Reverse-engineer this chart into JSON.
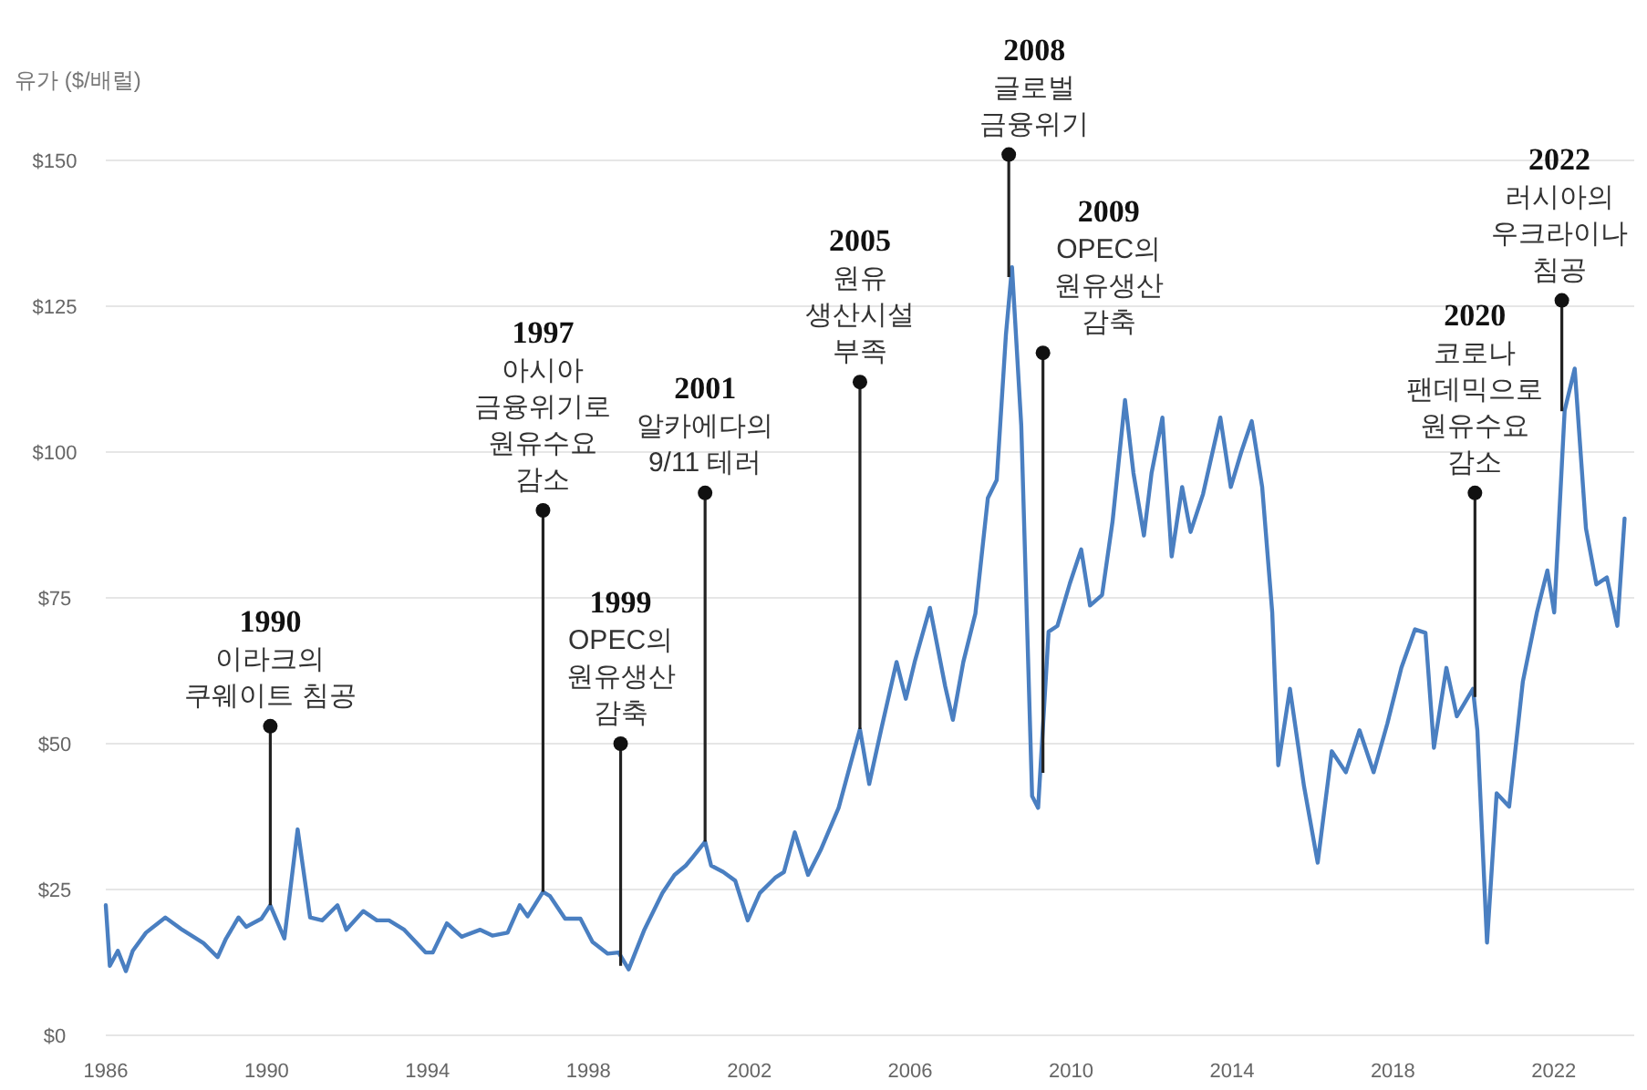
{
  "chart_data": {
    "type": "line",
    "ylabel": "유가 ($/배럴)",
    "xlim": [
      1986,
      2024
    ],
    "xticks": [
      1986,
      1990,
      1994,
      1998,
      2002,
      2006,
      2010,
      2014,
      2018,
      2022
    ],
    "ylim": [
      0,
      150
    ],
    "yticks": [
      {
        "value": 0,
        "label": "$0"
      },
      {
        "value": 25,
        "label": "$25"
      },
      {
        "value": 50,
        "label": "$50"
      },
      {
        "value": 75,
        "label": "$75"
      },
      {
        "value": 100,
        "label": "$100"
      },
      {
        "value": 125,
        "label": "$125"
      },
      {
        "value": 150,
        "label": "$150"
      }
    ],
    "grid": "y",
    "series": [
      {
        "color": "#4a7fc1",
        "x": [
          1986.0,
          1986.1,
          1986.3,
          1986.5,
          1986.67,
          1987.0,
          1987.48,
          1987.9,
          1988.18,
          1988.43,
          1988.78,
          1988.99,
          1989.3,
          1989.49,
          1989.87,
          1990.09,
          1990.44,
          1990.77,
          1991.08,
          1991.38,
          1991.76,
          1991.98,
          1992.4,
          1992.74,
          1993.04,
          1993.42,
          1993.95,
          1994.13,
          1994.48,
          1994.85,
          1995.31,
          1995.61,
          1995.99,
          1996.29,
          1996.49,
          1996.87,
          1997.04,
          1997.42,
          1997.8,
          1998.1,
          1998.48,
          1998.75,
          1999.0,
          1999.39,
          1999.84,
          2000.14,
          2000.42,
          2000.6,
          2000.9,
          2001.05,
          2001.35,
          2001.65,
          2001.96,
          2002.26,
          2002.64,
          2002.86,
          2003.13,
          2003.46,
          2003.77,
          2004.22,
          2004.75,
          2004.98,
          2005.28,
          2005.66,
          2005.89,
          2006.11,
          2006.49,
          2006.87,
          2007.06,
          2007.32,
          2007.62,
          2007.93,
          2008.15,
          2008.38,
          2008.53,
          2008.76,
          2009.03,
          2009.18,
          2009.44,
          2009.66,
          2009.97,
          2010.25,
          2010.47,
          2010.77,
          2011.03,
          2011.34,
          2011.55,
          2011.81,
          2012.0,
          2012.27,
          2012.5,
          2012.76,
          2012.97,
          2013.28,
          2013.71,
          2013.97,
          2014.23,
          2014.49,
          2014.75,
          2015.0,
          2015.15,
          2015.44,
          2015.79,
          2016.13,
          2016.48,
          2016.83,
          2017.17,
          2017.52,
          2017.86,
          2018.21,
          2018.55,
          2018.81,
          2019.02,
          2019.33,
          2019.59,
          2019.99,
          2020.1,
          2020.34,
          2020.58,
          2020.89,
          2021.23,
          2021.58,
          2021.84,
          2022.01,
          2022.27,
          2022.52,
          2022.8,
          2023.06,
          2023.32,
          2023.58,
          2023.76
        ],
        "values": [
          22.3,
          11.9,
          14.5,
          11.0,
          14.5,
          17.6,
          20.2,
          18.1,
          16.9,
          15.8,
          13.4,
          16.6,
          20.2,
          18.6,
          20.0,
          22.3,
          16.6,
          35.3,
          20.2,
          19.7,
          22.3,
          18.1,
          21.3,
          19.7,
          19.7,
          18.1,
          14.2,
          14.2,
          19.2,
          16.9,
          18.1,
          17.1,
          17.6,
          22.3,
          20.4,
          24.6,
          23.9,
          20.0,
          20.0,
          16.0,
          14.0,
          14.2,
          11.3,
          18.1,
          24.4,
          27.5,
          29.1,
          30.6,
          33.2,
          29.1,
          28.0,
          26.5,
          19.7,
          24.4,
          27.0,
          28.0,
          34.8,
          27.5,
          31.7,
          39.0,
          52.5,
          43.1,
          52.5,
          64.0,
          57.7,
          64.0,
          73.3,
          59.8,
          54.1,
          64.0,
          72.3,
          92.1,
          95.2,
          120.2,
          131.7,
          104.6,
          41.0,
          39.0,
          69.2,
          70.2,
          77.5,
          83.3,
          73.7,
          75.5,
          88.1,
          108.9,
          96.4,
          85.7,
          96.4,
          105.9,
          82.1,
          94.0,
          86.3,
          92.8,
          105.9,
          94.0,
          100.0,
          105.3,
          94.0,
          72.5,
          46.3,
          59.4,
          42.7,
          29.6,
          48.7,
          45.1,
          52.3,
          45.1,
          53.4,
          63.0,
          69.6,
          69.0,
          49.3,
          63.0,
          54.7,
          59.4,
          52.3,
          15.9,
          41.5,
          39.2,
          60.6,
          72.5,
          79.7,
          72.5,
          107.1,
          114.3,
          86.9,
          77.3,
          78.5,
          70.2,
          88.6
        ]
      }
    ],
    "annotations": [
      {
        "text": "1990\n이라크의\n쿠웨이트 침공",
        "x": 1990.09,
        "y": 22.3
      },
      {
        "text": "1997\n아시아\n금융위기로\n원유수요\n감소",
        "x": 1996.87,
        "y": 24.6
      },
      {
        "text": "1999\nOPEC의\n원유생산\n감축",
        "x": 1998.8,
        "y": 11.9
      },
      {
        "text": "2001\n알카에다의\n9/11 테러",
        "x": 2000.9,
        "y": 33.2
      },
      {
        "text": "2005\n원유\n생산시설\n부족",
        "x": 2004.75,
        "y": 52.5
      },
      {
        "text": "2008\n글로벌\n금융위기",
        "x": 2008.45,
        "y": 130
      },
      {
        "text": "2009\nOPEC의\n원유생산\n감축",
        "x": 2009.3,
        "y": 45
      },
      {
        "text": "2020\n코로나\n팬데믹으로\n원유수요\n감소",
        "x": 2020.04,
        "y": 58
      },
      {
        "text": "2022\n러시아의\n우크라이나\n침공",
        "x": 2022.2,
        "y": 107
      }
    ]
  }
}
